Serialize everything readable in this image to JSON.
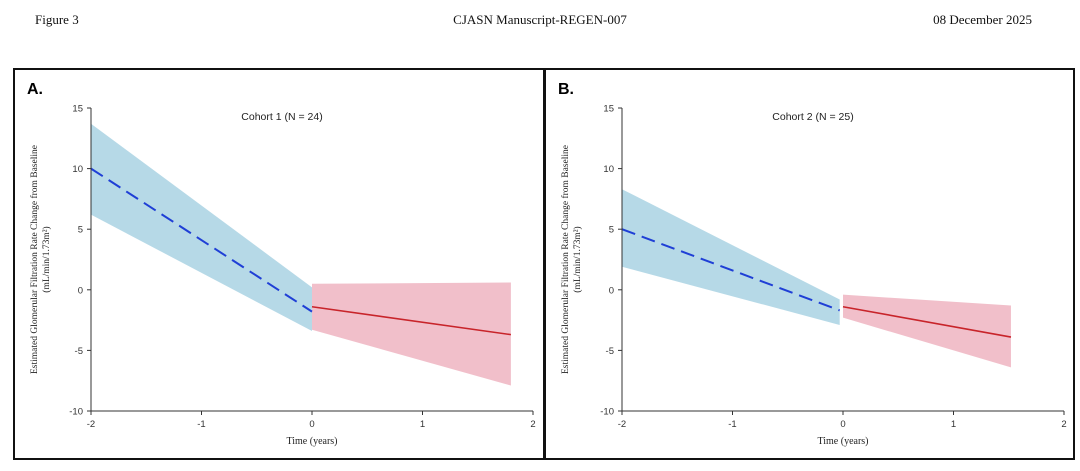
{
  "header": {
    "left": "Figure 3",
    "center": "CJASN Manuscript-REGEN-007",
    "right": "08 December 2025"
  },
  "colors": {
    "pre_band": "#a9d2e3",
    "pre_line": "#1f3fd6",
    "post_band": "#efb4c1",
    "post_line": "#c8242a"
  },
  "chart_data": [
    {
      "type": "line",
      "panel_label": "A.",
      "title": "Cohort 1  (N = 24)",
      "xlabel": "Time (years)",
      "ylabel": "Estimated Glomerular Filtration Rate Change from Baseline",
      "ylabel2": "(mL/min/1.73m²)",
      "xlim": [
        -2,
        2
      ],
      "ylim": [
        -10,
        15
      ],
      "xticks": [
        -2,
        -1,
        0,
        1,
        2
      ],
      "yticks": [
        15,
        10,
        5,
        0,
        -5,
        -10
      ],
      "grid": false,
      "series": [
        {
          "style": "dashed",
          "color": "#1f3fd6",
          "x": [
            -2.0,
            0.0
          ],
          "y": [
            10.0,
            -1.8
          ],
          "ci_upper": [
            13.7,
            0.2
          ],
          "ci_lower": [
            6.2,
            -3.4
          ]
        },
        {
          "style": "solid",
          "color": "#c8242a",
          "x": [
            0.0,
            1.8
          ],
          "y": [
            -1.4,
            -3.7
          ],
          "ci_upper": [
            0.5,
            0.6
          ],
          "ci_lower": [
            -3.3,
            -7.9
          ]
        }
      ]
    },
    {
      "type": "line",
      "panel_label": "B.",
      "title": "Cohort 2  (N = 25)",
      "xlabel": "Time (years)",
      "ylabel": "Estimated Glomerular Filtration Rate Change from Baseline",
      "ylabel2": "(mL/min/1.73m²)",
      "xlim": [
        -2,
        2
      ],
      "ylim": [
        -10,
        15
      ],
      "xticks": [
        -2,
        -1,
        0,
        1,
        2
      ],
      "yticks": [
        15,
        10,
        5,
        0,
        -5,
        -10
      ],
      "grid": false,
      "series": [
        {
          "style": "dashed",
          "color": "#1f3fd6",
          "x": [
            -2.0,
            -0.03
          ],
          "y": [
            5.0,
            -1.7
          ],
          "ci_upper": [
            8.3,
            -0.8
          ],
          "ci_lower": [
            1.9,
            -2.9
          ]
        },
        {
          "style": "solid",
          "color": "#c8242a",
          "x": [
            0.0,
            1.52
          ],
          "y": [
            -1.4,
            -3.9
          ],
          "ci_upper": [
            -0.4,
            -1.3
          ],
          "ci_lower": [
            -2.3,
            -6.4
          ]
        }
      ]
    }
  ]
}
